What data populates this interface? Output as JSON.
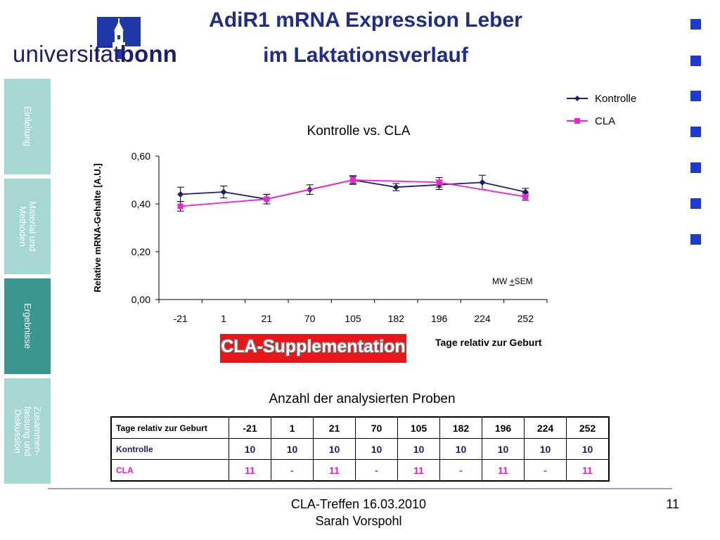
{
  "logo": {
    "text_regular": "universität",
    "text_bold": "bonn"
  },
  "title": {
    "line1": "AdiR1 mRNA Expression Leber",
    "line2": "im Laktationsverlauf"
  },
  "side_nav": {
    "items": [
      {
        "label": "Einleitung",
        "active": false
      },
      {
        "label": "Material und\nMethoden",
        "active": false
      },
      {
        "label": "Ergebnisse",
        "active": true
      },
      {
        "label": "Zusammen-\nfassung und\nDiskussion",
        "active": false
      }
    ]
  },
  "chart_data": {
    "type": "line",
    "title": "Kontrolle vs. CLA",
    "ylabel": "Relative mRNA-Gehalte [A.U.]",
    "xlabel": "Tage relativ zur Geburt",
    "categories": [
      "-21",
      "1",
      "21",
      "70",
      "105",
      "182",
      "196",
      "224",
      "252"
    ],
    "ylim": [
      0,
      0.6
    ],
    "yticks": [
      "0,00",
      "0,20",
      "0,40",
      "0,60"
    ],
    "ytick_values": [
      0,
      0.2,
      0.4,
      0.6
    ],
    "annotation": "MW +SEM",
    "legend_position": "top-right",
    "series": [
      {
        "name": "Kontrolle",
        "color": "#1a1f73",
        "marker": "diamond",
        "values": [
          0.44,
          0.45,
          0.42,
          0.46,
          0.5,
          0.47,
          0.48,
          0.49,
          0.45
        ],
        "errors": [
          0.03,
          0.025,
          0.02,
          0.02,
          0.018,
          0.015,
          0.02,
          0.03,
          0.015
        ]
      },
      {
        "name": "CLA",
        "color": "#ee22dd",
        "marker": "square",
        "values": [
          0.39,
          null,
          0.42,
          null,
          0.5,
          null,
          0.49,
          null,
          0.43
        ],
        "errors": [
          0.02,
          null,
          0.02,
          null,
          0.015,
          null,
          0.02,
          null,
          0.015
        ]
      }
    ]
  },
  "banner": {
    "text": "CLA-Supplementation"
  },
  "samples_table": {
    "title": "Anzahl der analysierten Proben",
    "header_label": "Tage relativ zur Geburt",
    "days": [
      "-21",
      "1",
      "21",
      "70",
      "105",
      "182",
      "196",
      "224",
      "252"
    ],
    "rows": [
      {
        "label": "Kontrolle",
        "values": [
          "10",
          "10",
          "10",
          "10",
          "10",
          "10",
          "10",
          "10",
          "10"
        ]
      },
      {
        "label": "CLA",
        "values": [
          "11",
          "-",
          "11",
          "-",
          "11",
          "-",
          "11",
          "-",
          "11"
        ]
      }
    ]
  },
  "footer": {
    "event": "CLA-Treffen 16.03.2010",
    "author": "Sarah Vorspohl",
    "page": "11"
  },
  "colors": {
    "title": "#1f2d8a",
    "nav_inactive": "#a7d7d3",
    "nav_active": "#3b9591",
    "square": "#1f3ad0",
    "banner": "#e8151b"
  }
}
